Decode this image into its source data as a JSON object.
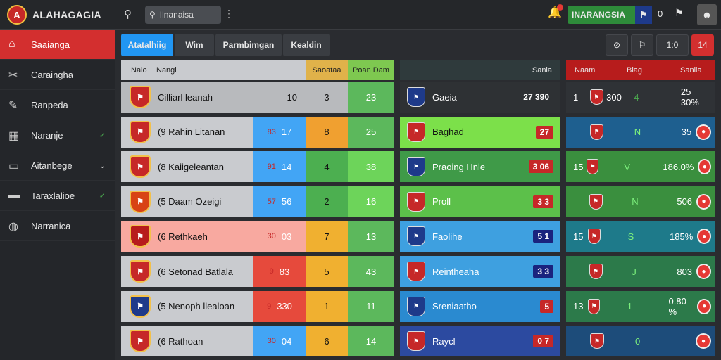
{
  "app": {
    "title": "ALAHAGAGIA",
    "logo_text": "A"
  },
  "search": {
    "value": "Ilnanaisa"
  },
  "header": {
    "team": "INARANGSIA",
    "count": "0"
  },
  "colors": {
    "accent": "#d32f2f",
    "green": "#4caf50",
    "blue": "#2196f3"
  },
  "sidebar": {
    "items": [
      {
        "label": "Saaianga",
        "icon": "home-icon"
      },
      {
        "label": "Caraingha",
        "icon": "tools-icon"
      },
      {
        "label": "Ranpeda",
        "icon": "pencil-icon"
      },
      {
        "label": "Naranje",
        "icon": "grid-icon"
      },
      {
        "label": "Aitanbege",
        "icon": "monitor-icon"
      },
      {
        "label": "Taraxlalioe",
        "icon": "chart-icon"
      },
      {
        "label": "Narranica",
        "icon": "globe-icon"
      }
    ]
  },
  "tabs": [
    {
      "label": "Atatalhiig"
    },
    {
      "label": "Wim"
    },
    {
      "label": "Parmbimgan"
    },
    {
      "label": "Kealdin"
    }
  ],
  "toolbar": {
    "btn1": "⊘",
    "btn2": "⚐",
    "btn3": "1:0",
    "btn4": "14"
  },
  "table_left": {
    "headers": [
      "Nalo",
      "Nangi",
      "Saoataa",
      "Poan Dam"
    ],
    "rows": [
      {
        "team": "Cilliarl leanah",
        "a": "",
        "b": "10",
        "c": "3",
        "d": "23",
        "crest": "#c62828"
      },
      {
        "team": "(9 Rahin Litanan",
        "a": "83",
        "b": "17",
        "c": "8",
        "d": "25",
        "crest": "#c62828"
      },
      {
        "team": "(8 Kaiigeleantan",
        "a": "91",
        "b": "14",
        "c": "4",
        "d": "38",
        "crest": "#c62828"
      },
      {
        "team": "(5 Daam Ozeigi",
        "a": "57",
        "b": "56",
        "c": "2",
        "d": "16",
        "crest": "#d84315"
      },
      {
        "team": "(6 Rethkaeh",
        "a": "30",
        "b": "03",
        "c": "7",
        "d": "13",
        "crest": "#b71c1c"
      },
      {
        "team": "(6 Setonad Batlala",
        "a": "9",
        "b": "83",
        "c": "5",
        "d": "43",
        "crest": "#c62828"
      },
      {
        "team": "(5 Nenoph llealoan",
        "a": "9",
        "b": "330",
        "c": "1",
        "d": "11",
        "crest": "#1e3a8a"
      },
      {
        "team": "(6 Rathoan",
        "a": "30",
        "b": "04",
        "c": "6",
        "d": "14",
        "crest": "#c62828"
      }
    ]
  },
  "table_mid": {
    "header": "Sania",
    "rows": [
      {
        "team": "Gaeia",
        "score": "27 390"
      },
      {
        "team": "Baghad",
        "score": "27"
      },
      {
        "team": "Praoing Hnle",
        "score": "3 06"
      },
      {
        "team": "Proll",
        "score": "3 3"
      },
      {
        "team": "Faolihe",
        "score": "5 1"
      },
      {
        "team": "Reintheaha",
        "score": "3 3"
      },
      {
        "team": "Sreniaatho",
        "score": "5"
      },
      {
        "team": "Raycl",
        "score": "0 7"
      }
    ]
  },
  "table_right": {
    "headers": [
      "Naam",
      "Blag",
      "Saniia"
    ],
    "rows": [
      {
        "a": "1",
        "b": "300",
        "c": "4",
        "d": "25 30%"
      },
      {
        "a": "",
        "b": "",
        "c": "N",
        "d": "35"
      },
      {
        "a": "15",
        "b": "",
        "c": "V",
        "d": "186.0%"
      },
      {
        "a": "",
        "b": "",
        "c": "N",
        "d": "506"
      },
      {
        "a": "15",
        "b": "",
        "c": "S",
        "d": "185%"
      },
      {
        "a": "",
        "b": "",
        "c": "J",
        "d": "803"
      },
      {
        "a": "13",
        "b": "",
        "c": "1",
        "d": "0.80 %"
      },
      {
        "a": "",
        "b": "",
        "c": "0",
        "d": ""
      }
    ]
  }
}
